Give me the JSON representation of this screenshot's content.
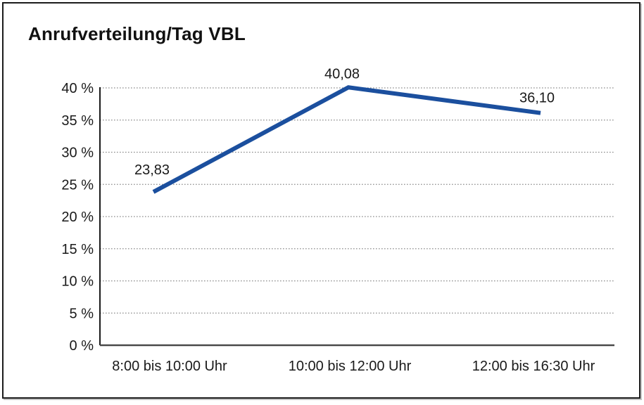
{
  "title": "Anrufverteilung/Tag VBL",
  "colors": {
    "line": "#1b4f9e",
    "grid": "#8c8c8c",
    "axis_y": "#1a1a1a",
    "axis_x": "#4a4a4a",
    "text": "#1a1a1a",
    "border": "#1c1c1c",
    "background": "#ffffff"
  },
  "chart_data": {
    "type": "line",
    "title": "Anrufverteilung/Tag VBL",
    "categories": [
      "8:00 bis 10:00 Uhr",
      "10:00 bis 12:00 Uhr",
      "12:00 bis 16:30 Uhr"
    ],
    "values": [
      23.83,
      40.08,
      36.1
    ],
    "value_labels": [
      "23,83",
      "40,08",
      "36,10"
    ],
    "xlabel": "",
    "ylabel": "",
    "ylim": [
      0,
      40
    ],
    "ytick_step": 5,
    "ytick_labels": [
      "0 %",
      "5 %",
      "10 %",
      "15 %",
      "20 %",
      "25 %",
      "30 %",
      "35 %",
      "40 %"
    ],
    "grid": "horizontal-dotted",
    "legend": "none"
  }
}
